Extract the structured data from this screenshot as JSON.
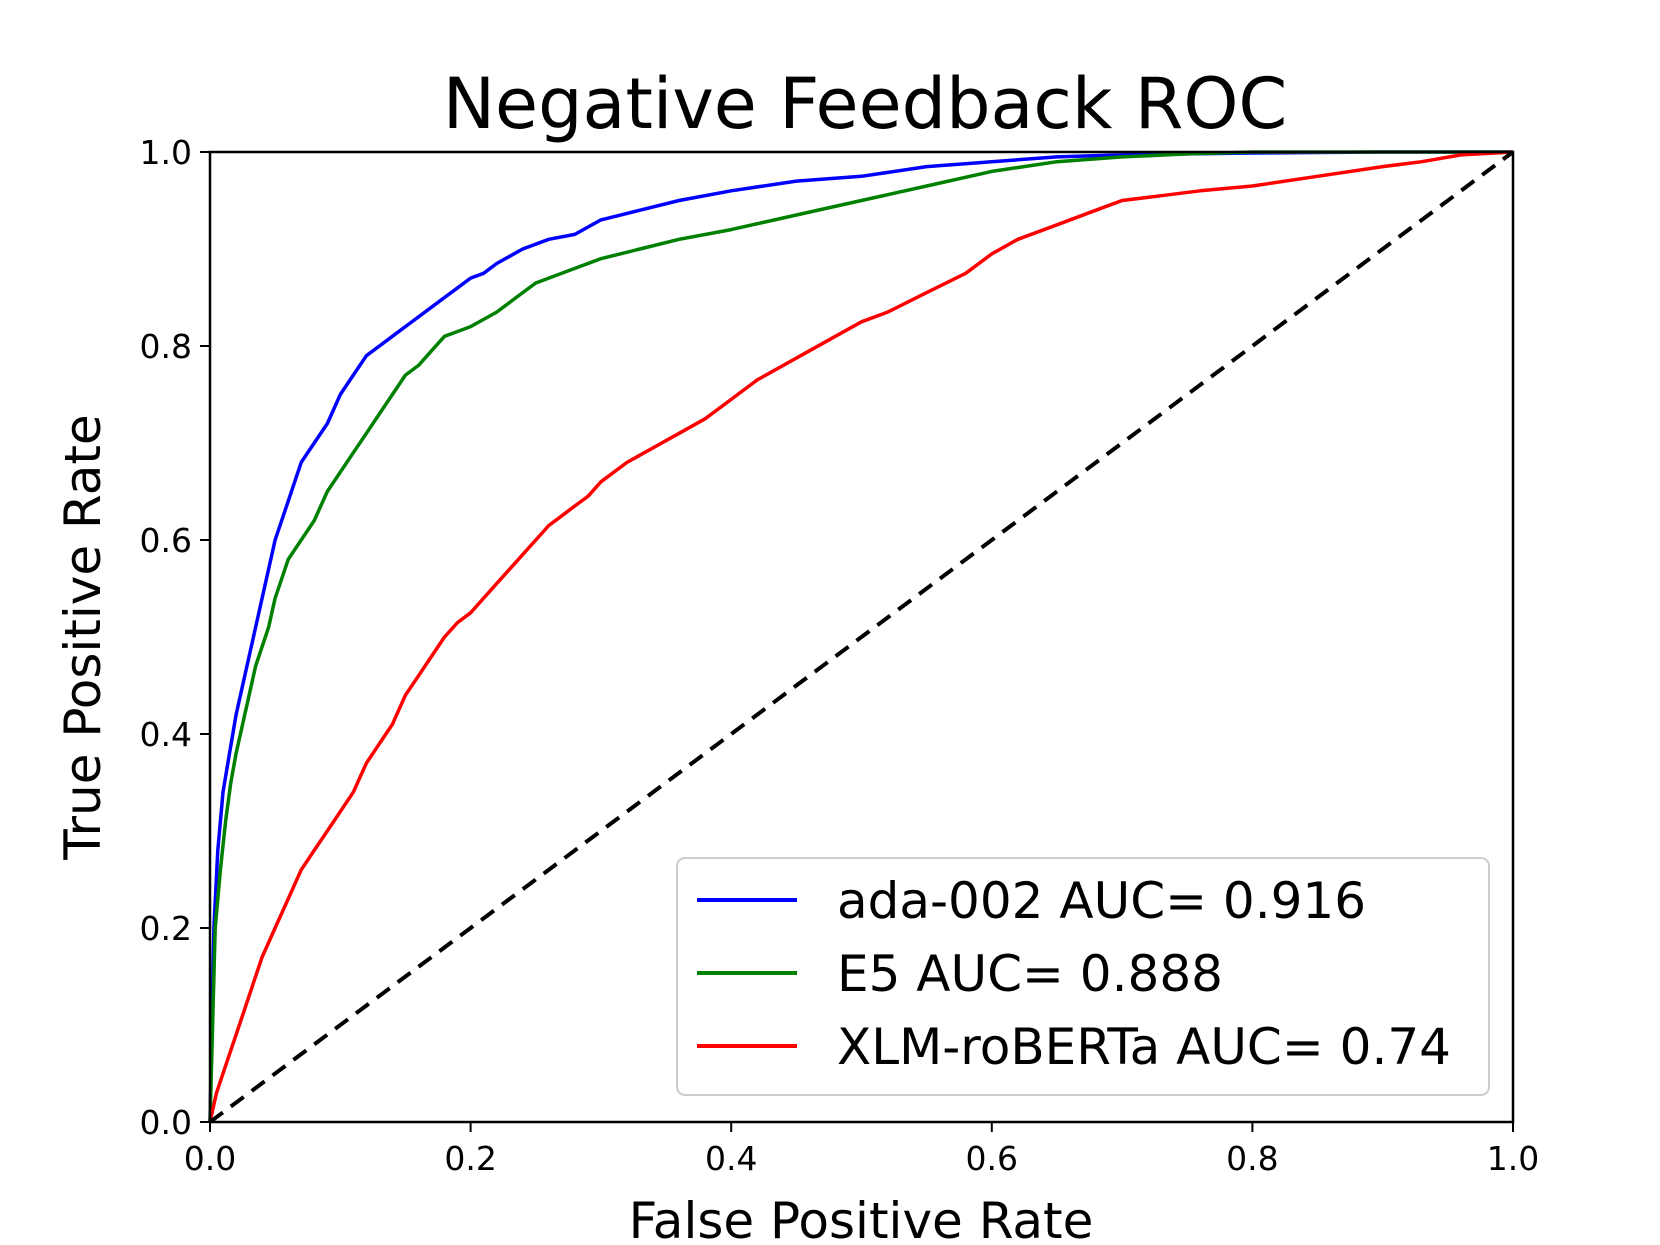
{
  "chart_data": {
    "type": "line",
    "title": "Negative Feedback ROC",
    "xlabel": "False Positive Rate",
    "ylabel": "True Positive Rate",
    "xlim": [
      0.0,
      1.0
    ],
    "ylim": [
      0.0,
      1.0
    ],
    "xticks": [
      "0.0",
      "0.2",
      "0.4",
      "0.6",
      "0.8",
      "1.0"
    ],
    "yticks": [
      "0.0",
      "0.2",
      "0.4",
      "0.6",
      "0.8",
      "1.0"
    ],
    "grid": false,
    "legend_position": "lower-right",
    "series": [
      {
        "name": "ada-002 AUC= 0.916",
        "color": "#0000ff",
        "x": [
          0.0,
          0.003,
          0.006,
          0.01,
          0.015,
          0.02,
          0.025,
          0.03,
          0.035,
          0.04,
          0.045,
          0.05,
          0.06,
          0.07,
          0.08,
          0.09,
          0.1,
          0.11,
          0.12,
          0.13,
          0.14,
          0.15,
          0.16,
          0.17,
          0.18,
          0.19,
          0.2,
          0.21,
          0.22,
          0.24,
          0.26,
          0.28,
          0.3,
          0.33,
          0.36,
          0.4,
          0.45,
          0.5,
          0.55,
          0.6,
          0.65,
          0.7,
          0.75,
          0.8,
          0.9,
          1.0
        ],
        "y": [
          0.0,
          0.2,
          0.28,
          0.34,
          0.38,
          0.42,
          0.45,
          0.48,
          0.51,
          0.54,
          0.57,
          0.6,
          0.64,
          0.68,
          0.7,
          0.72,
          0.75,
          0.77,
          0.79,
          0.8,
          0.81,
          0.82,
          0.83,
          0.84,
          0.85,
          0.86,
          0.87,
          0.875,
          0.885,
          0.9,
          0.91,
          0.915,
          0.93,
          0.94,
          0.95,
          0.96,
          0.97,
          0.975,
          0.985,
          0.99,
          0.995,
          0.997,
          0.998,
          0.999,
          1.0,
          1.0
        ]
      },
      {
        "name": "E5 AUC= 0.888",
        "color": "#008000",
        "x": [
          0.0,
          0.004,
          0.008,
          0.012,
          0.016,
          0.02,
          0.025,
          0.03,
          0.035,
          0.04,
          0.045,
          0.05,
          0.055,
          0.06,
          0.065,
          0.07,
          0.08,
          0.09,
          0.1,
          0.11,
          0.12,
          0.13,
          0.14,
          0.15,
          0.16,
          0.17,
          0.18,
          0.19,
          0.2,
          0.22,
          0.24,
          0.25,
          0.26,
          0.28,
          0.3,
          0.33,
          0.36,
          0.4,
          0.45,
          0.5,
          0.55,
          0.6,
          0.65,
          0.7,
          0.75,
          0.8,
          0.9,
          1.0
        ],
        "y": [
          0.0,
          0.2,
          0.26,
          0.31,
          0.35,
          0.38,
          0.41,
          0.44,
          0.47,
          0.49,
          0.51,
          0.54,
          0.56,
          0.58,
          0.59,
          0.6,
          0.62,
          0.65,
          0.67,
          0.69,
          0.71,
          0.73,
          0.75,
          0.77,
          0.78,
          0.795,
          0.81,
          0.815,
          0.82,
          0.835,
          0.855,
          0.865,
          0.87,
          0.88,
          0.89,
          0.9,
          0.91,
          0.92,
          0.935,
          0.95,
          0.965,
          0.98,
          0.99,
          0.995,
          0.998,
          1.0,
          1.0,
          1.0
        ]
      },
      {
        "name": "XLM-roBERTa AUC= 0.74",
        "color": "#ff0000",
        "x": [
          0.0,
          0.005,
          0.01,
          0.02,
          0.03,
          0.04,
          0.05,
          0.06,
          0.07,
          0.08,
          0.09,
          0.1,
          0.11,
          0.12,
          0.13,
          0.14,
          0.15,
          0.16,
          0.17,
          0.18,
          0.19,
          0.2,
          0.21,
          0.22,
          0.23,
          0.24,
          0.25,
          0.26,
          0.27,
          0.28,
          0.29,
          0.3,
          0.32,
          0.34,
          0.36,
          0.38,
          0.4,
          0.42,
          0.44,
          0.46,
          0.48,
          0.5,
          0.52,
          0.55,
          0.58,
          0.6,
          0.62,
          0.65,
          0.68,
          0.7,
          0.73,
          0.76,
          0.8,
          0.85,
          0.9,
          0.93,
          0.96,
          1.0
        ],
        "y": [
          0.0,
          0.03,
          0.05,
          0.09,
          0.13,
          0.17,
          0.2,
          0.23,
          0.26,
          0.28,
          0.3,
          0.32,
          0.34,
          0.37,
          0.39,
          0.41,
          0.44,
          0.46,
          0.48,
          0.5,
          0.515,
          0.525,
          0.54,
          0.555,
          0.57,
          0.585,
          0.6,
          0.615,
          0.625,
          0.635,
          0.645,
          0.66,
          0.68,
          0.695,
          0.71,
          0.725,
          0.745,
          0.765,
          0.78,
          0.795,
          0.81,
          0.825,
          0.835,
          0.855,
          0.875,
          0.895,
          0.91,
          0.925,
          0.94,
          0.95,
          0.955,
          0.96,
          0.965,
          0.975,
          0.985,
          0.99,
          0.997,
          1.0
        ]
      }
    ],
    "reference_line": {
      "name": "chance",
      "x": [
        0.0,
        1.0
      ],
      "y": [
        0.0,
        1.0
      ],
      "color": "#000000",
      "style": "dashed"
    }
  }
}
